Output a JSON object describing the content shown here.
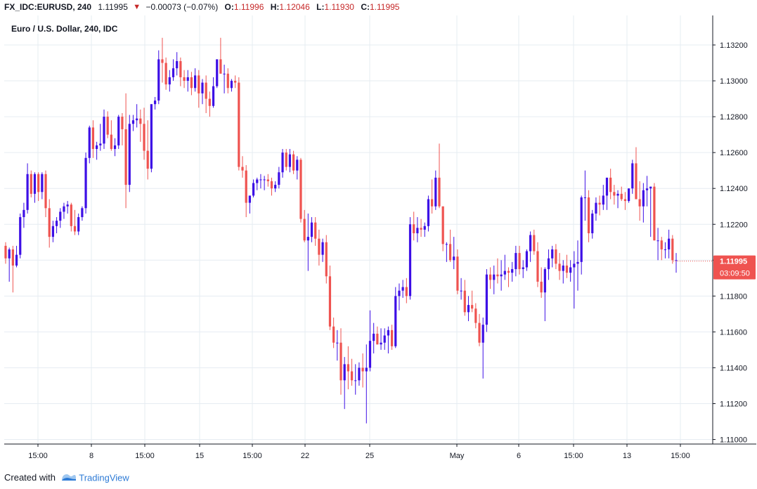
{
  "header": {
    "symbol": "FX_IDC:EURUSD, 240",
    "last": "1.11995",
    "arrow": "▼",
    "change": "−0.00073 (−0.07%)",
    "o_label": "O:",
    "o_value": "1.11996",
    "h_label": "H:",
    "h_value": "1.12046",
    "l_label": "L:",
    "l_value": "1.11930",
    "c_label": "C:",
    "c_value": "1.11995"
  },
  "footer": {
    "created_with": "Created with",
    "brand": "TradingView"
  },
  "colors": {
    "up": "#3d0fe6",
    "down": "#ef5350",
    "grid": "#e6ecf2",
    "axis": "#131722",
    "price_tag": "#ef5350"
  },
  "chart_data": {
    "type": "candlestick",
    "title": "Euro / U.S. Dollar, 240, IDC",
    "ylim": [
      1.1099,
      1.1324
    ],
    "y_ticks": [
      "1.13200",
      "1.13000",
      "1.12800",
      "1.12600",
      "1.12400",
      "1.12200",
      "1.12000",
      "1.11800",
      "1.11600",
      "1.11400",
      "1.11200",
      "1.11000"
    ],
    "x_ticks": [
      "15:00",
      "8",
      "15:00",
      "15",
      "15:00",
      "22",
      "25",
      "May",
      "6",
      "15:00",
      "13",
      "15:00"
    ],
    "grid": true,
    "last_price_label": "1.11995",
    "countdown_label": "03:09:50",
    "candles_ohlc": [
      [
        1.1208,
        1.121,
        1.1198,
        1.1201
      ],
      [
        1.1201,
        1.1207,
        1.1188,
        1.1206
      ],
      [
        1.1206,
        1.1208,
        1.1182,
        1.1197
      ],
      [
        1.1197,
        1.1208,
        1.1196,
        1.1203
      ],
      [
        1.1203,
        1.1226,
        1.1201,
        1.1224
      ],
      [
        1.1224,
        1.1232,
        1.1218,
        1.1228
      ],
      [
        1.1228,
        1.1254,
        1.1226,
        1.1248
      ],
      [
        1.1248,
        1.125,
        1.1235,
        1.1237
      ],
      [
        1.1237,
        1.1249,
        1.1232,
        1.1248
      ],
      [
        1.1248,
        1.1249,
        1.1233,
        1.1238
      ],
      [
        1.1238,
        1.1249,
        1.1234,
        1.1248
      ],
      [
        1.1248,
        1.125,
        1.1224,
        1.1229
      ],
      [
        1.1229,
        1.1234,
        1.1207,
        1.1213
      ],
      [
        1.1213,
        1.1222,
        1.121,
        1.1219
      ],
      [
        1.1219,
        1.1224,
        1.1215,
        1.1222
      ],
      [
        1.1222,
        1.1229,
        1.1218,
        1.1227
      ],
      [
        1.1227,
        1.1232,
        1.1223,
        1.123
      ],
      [
        1.123,
        1.1233,
        1.1226,
        1.1231
      ],
      [
        1.1231,
        1.1232,
        1.1216,
        1.1219
      ],
      [
        1.1219,
        1.1228,
        1.1214,
        1.1216
      ],
      [
        1.1216,
        1.1226,
        1.1214,
        1.1224
      ],
      [
        1.1224,
        1.123,
        1.1222,
        1.1229
      ],
      [
        1.1229,
        1.126,
        1.1226,
        1.1257
      ],
      [
        1.1257,
        1.1275,
        1.1254,
        1.1274
      ],
      [
        1.1274,
        1.1278,
        1.1257,
        1.1262
      ],
      [
        1.1262,
        1.1266,
        1.1256,
        1.1264
      ],
      [
        1.1264,
        1.1276,
        1.1261,
        1.1265
      ],
      [
        1.1265,
        1.1284,
        1.1262,
        1.128
      ],
      [
        1.128,
        1.1283,
        1.1268,
        1.127
      ],
      [
        1.127,
        1.1278,
        1.1261,
        1.1262
      ],
      [
        1.1262,
        1.1268,
        1.1258,
        1.1264
      ],
      [
        1.1264,
        1.1281,
        1.1262,
        1.128
      ],
      [
        1.128,
        1.1282,
        1.1264,
        1.1273
      ],
      [
        1.1273,
        1.1293,
        1.1229,
        1.1242
      ],
      [
        1.1242,
        1.1281,
        1.1238,
        1.1276
      ],
      [
        1.1276,
        1.1281,
        1.1272,
        1.1278
      ],
      [
        1.1278,
        1.1287,
        1.1274,
        1.1279
      ],
      [
        1.1279,
        1.1284,
        1.1266,
        1.1276
      ],
      [
        1.1276,
        1.1285,
        1.1256,
        1.1261
      ],
      [
        1.1261,
        1.1278,
        1.1245,
        1.1251
      ],
      [
        1.1251,
        1.1285,
        1.1249,
        1.1287
      ],
      [
        1.1287,
        1.1291,
        1.1284,
        1.1289
      ],
      [
        1.1289,
        1.1317,
        1.1287,
        1.1312
      ],
      [
        1.1312,
        1.1324,
        1.1299,
        1.131
      ],
      [
        1.131,
        1.1313,
        1.1295,
        1.1298
      ],
      [
        1.1298,
        1.1306,
        1.1294,
        1.1302
      ],
      [
        1.1302,
        1.1312,
        1.13,
        1.1307
      ],
      [
        1.1307,
        1.1316,
        1.1303,
        1.1311
      ],
      [
        1.1311,
        1.1313,
        1.1297,
        1.1302
      ],
      [
        1.1302,
        1.1306,
        1.1296,
        1.13
      ],
      [
        1.13,
        1.1306,
        1.1294,
        1.1302
      ],
      [
        1.1302,
        1.1305,
        1.1292,
        1.1296
      ],
      [
        1.1296,
        1.1307,
        1.1294,
        1.1303
      ],
      [
        1.1303,
        1.1306,
        1.1285,
        1.1293
      ],
      [
        1.1293,
        1.1301,
        1.1287,
        1.1299
      ],
      [
        1.1299,
        1.1303,
        1.1282,
        1.129
      ],
      [
        1.129,
        1.1294,
        1.128,
        1.1286
      ],
      [
        1.1286,
        1.1302,
        1.1285,
        1.1297
      ],
      [
        1.1297,
        1.1308,
        1.1296,
        1.1312
      ],
      [
        1.1312,
        1.1324,
        1.1304,
        1.1304
      ],
      [
        1.1304,
        1.1309,
        1.1293,
        1.1304
      ],
      [
        1.1304,
        1.1307,
        1.1293,
        1.1296
      ],
      [
        1.1296,
        1.1301,
        1.1294,
        1.13
      ],
      [
        1.13,
        1.1303,
        1.1296,
        1.1299
      ],
      [
        1.1299,
        1.1302,
        1.125,
        1.1252
      ],
      [
        1.1252,
        1.1258,
        1.1246,
        1.125
      ],
      [
        1.125,
        1.1253,
        1.1224,
        1.1232
      ],
      [
        1.1232,
        1.1235,
        1.1226,
        1.1236
      ],
      [
        1.1236,
        1.1245,
        1.1235,
        1.1243
      ],
      [
        1.1243,
        1.1246,
        1.1239,
        1.1245
      ],
      [
        1.1245,
        1.1248,
        1.124,
        1.1245
      ],
      [
        1.1245,
        1.1247,
        1.1239,
        1.1245
      ],
      [
        1.1245,
        1.1248,
        1.1241,
        1.1244
      ],
      [
        1.1244,
        1.1246,
        1.1236,
        1.124
      ],
      [
        1.124,
        1.1244,
        1.1238,
        1.1242
      ],
      [
        1.1242,
        1.1252,
        1.124,
        1.1249
      ],
      [
        1.1249,
        1.1262,
        1.1246,
        1.126
      ],
      [
        1.126,
        1.1262,
        1.125,
        1.1252
      ],
      [
        1.1252,
        1.1262,
        1.1249,
        1.1259
      ],
      [
        1.1259,
        1.1261,
        1.1248,
        1.125
      ],
      [
        1.125,
        1.1258,
        1.1245,
        1.1256
      ],
      [
        1.1256,
        1.1257,
        1.1221,
        1.1223
      ],
      [
        1.1223,
        1.1228,
        1.121,
        1.1211
      ],
      [
        1.1211,
        1.1226,
        1.1194,
        1.1213
      ],
      [
        1.1213,
        1.1224,
        1.121,
        1.1221
      ],
      [
        1.1221,
        1.1224,
        1.1208,
        1.1212
      ],
      [
        1.1212,
        1.1217,
        1.1197,
        1.1203
      ],
      [
        1.1203,
        1.1212,
        1.1199,
        1.121
      ],
      [
        1.121,
        1.1214,
        1.1187,
        1.1191
      ],
      [
        1.1191,
        1.1197,
        1.1161,
        1.1163
      ],
      [
        1.1163,
        1.1168,
        1.1151,
        1.1154
      ],
      [
        1.1154,
        1.1161,
        1.1144,
        1.1154
      ],
      [
        1.1154,
        1.1162,
        1.1125,
        1.1133
      ],
      [
        1.1133,
        1.1146,
        1.1117,
        1.1142
      ],
      [
        1.1142,
        1.1152,
        1.1128,
        1.1138
      ],
      [
        1.1138,
        1.1145,
        1.113,
        1.1133
      ],
      [
        1.1133,
        1.1142,
        1.1125,
        1.1133
      ],
      [
        1.1133,
        1.1143,
        1.113,
        1.114
      ],
      [
        1.114,
        1.1148,
        1.1129,
        1.1138
      ],
      [
        1.1138,
        1.1153,
        1.1109,
        1.114
      ],
      [
        1.114,
        1.1172,
        1.1138,
        1.1155
      ],
      [
        1.1155,
        1.1165,
        1.1148,
        1.1159
      ],
      [
        1.1159,
        1.1163,
        1.1153,
        1.1153
      ],
      [
        1.1153,
        1.1162,
        1.115,
        1.1154
      ],
      [
        1.1154,
        1.1162,
        1.115,
        1.1158
      ],
      [
        1.1158,
        1.1163,
        1.1148,
        1.1161
      ],
      [
        1.1161,
        1.1164,
        1.115,
        1.1152
      ],
      [
        1.1152,
        1.1185,
        1.1151,
        1.118
      ],
      [
        1.118,
        1.1187,
        1.1172,
        1.1183
      ],
      [
        1.1183,
        1.1189,
        1.1179,
        1.1185
      ],
      [
        1.1185,
        1.119,
        1.1176,
        1.118
      ],
      [
        1.118,
        1.1224,
        1.1178,
        1.122
      ],
      [
        1.122,
        1.1227,
        1.1211,
        1.1215
      ],
      [
        1.1215,
        1.1224,
        1.121,
        1.1218
      ],
      [
        1.1218,
        1.1223,
        1.1213,
        1.1217
      ],
      [
        1.1217,
        1.1221,
        1.1213,
        1.1219
      ],
      [
        1.1219,
        1.1236,
        1.1216,
        1.1234
      ],
      [
        1.1234,
        1.1245,
        1.1226,
        1.123
      ],
      [
        1.123,
        1.125,
        1.1228,
        1.1246
      ],
      [
        1.1246,
        1.1265,
        1.1229,
        1.123
      ],
      [
        1.123,
        1.1228,
        1.1205,
        1.1209
      ],
      [
        1.1209,
        1.121,
        1.1199,
        1.1209
      ],
      [
        1.1209,
        1.1217,
        1.1199,
        1.12
      ],
      [
        1.12,
        1.1213,
        1.1195,
        1.1202
      ],
      [
        1.1202,
        1.1206,
        1.1181,
        1.1183
      ],
      [
        1.1183,
        1.119,
        1.1178,
        1.1183
      ],
      [
        1.1183,
        1.1189,
        1.1169,
        1.1171
      ],
      [
        1.1171,
        1.118,
        1.1166,
        1.1175
      ],
      [
        1.1175,
        1.1183,
        1.1171,
        1.1173
      ],
      [
        1.1173,
        1.1176,
        1.1162,
        1.1165
      ],
      [
        1.1165,
        1.117,
        1.1152,
        1.1154
      ],
      [
        1.1154,
        1.1168,
        1.1134,
        1.1164
      ],
      [
        1.1164,
        1.1195,
        1.116,
        1.1192
      ],
      [
        1.1192,
        1.1196,
        1.1184,
        1.1189
      ],
      [
        1.1189,
        1.1197,
        1.1181,
        1.1192
      ],
      [
        1.1192,
        1.1201,
        1.1187,
        1.1191
      ],
      [
        1.1191,
        1.12,
        1.1183,
        1.1192
      ],
      [
        1.1192,
        1.1203,
        1.1189,
        1.1194
      ],
      [
        1.1194,
        1.1196,
        1.1185,
        1.1193
      ],
      [
        1.1193,
        1.1199,
        1.1188,
        1.1195
      ],
      [
        1.1195,
        1.1208,
        1.1191,
        1.1204
      ],
      [
        1.1204,
        1.1208,
        1.1192,
        1.1195
      ],
      [
        1.1195,
        1.12,
        1.119,
        1.1196
      ],
      [
        1.1196,
        1.1206,
        1.1194,
        1.1205
      ],
      [
        1.1205,
        1.1216,
        1.1199,
        1.1214
      ],
      [
        1.1214,
        1.1217,
        1.1203,
        1.1205
      ],
      [
        1.1205,
        1.121,
        1.1185,
        1.1188
      ],
      [
        1.1188,
        1.1196,
        1.1179,
        1.1182
      ],
      [
        1.1182,
        1.1196,
        1.1166,
        1.1195
      ],
      [
        1.1195,
        1.1206,
        1.1189,
        1.1201
      ],
      [
        1.1201,
        1.1208,
        1.1196,
        1.1206
      ],
      [
        1.1206,
        1.1209,
        1.1195,
        1.1198
      ],
      [
        1.1198,
        1.1204,
        1.1189,
        1.1194
      ],
      [
        1.1194,
        1.12,
        1.1187,
        1.1197
      ],
      [
        1.1197,
        1.1203,
        1.119,
        1.1193
      ],
      [
        1.1193,
        1.12,
        1.1188,
        1.1196
      ],
      [
        1.1196,
        1.1205,
        1.1173,
        1.1198
      ],
      [
        1.1198,
        1.1211,
        1.1183,
        1.1199
      ],
      [
        1.1199,
        1.1236,
        1.1192,
        1.1235
      ],
      [
        1.1235,
        1.125,
        1.1222,
        1.1235
      ],
      [
        1.1235,
        1.1239,
        1.121,
        1.1215
      ],
      [
        1.1215,
        1.1228,
        1.1212,
        1.1226
      ],
      [
        1.1226,
        1.1235,
        1.1222,
        1.1232
      ],
      [
        1.1232,
        1.1236,
        1.1225,
        1.1231
      ],
      [
        1.1231,
        1.1242,
        1.1228,
        1.1236
      ],
      [
        1.1236,
        1.1246,
        1.1228,
        1.1246
      ],
      [
        1.1246,
        1.1251,
        1.1234,
        1.1238
      ],
      [
        1.1238,
        1.1242,
        1.1231,
        1.1236
      ],
      [
        1.1236,
        1.1239,
        1.1229,
        1.1237
      ],
      [
        1.1237,
        1.1241,
        1.1233,
        1.1234
      ],
      [
        1.1234,
        1.1238,
        1.1228,
        1.1233
      ],
      [
        1.1233,
        1.124,
        1.1232,
        1.124
      ],
      [
        1.124,
        1.1256,
        1.1237,
        1.1254
      ],
      [
        1.1254,
        1.1263,
        1.1236,
        1.1234
      ],
      [
        1.1234,
        1.1244,
        1.1222,
        1.123
      ],
      [
        1.123,
        1.1243,
        1.1221,
        1.1239
      ],
      [
        1.1239,
        1.1247,
        1.123,
        1.124
      ],
      [
        1.124,
        1.124,
        1.1213,
        1.1241
      ],
      [
        1.1241,
        1.1243,
        1.1212,
        1.1211
      ],
      [
        1.1211,
        1.1218,
        1.12,
        1.1211
      ],
      [
        1.1211,
        1.1213,
        1.12,
        1.1206
      ],
      [
        1.1206,
        1.121,
        1.1201,
        1.1206
      ],
      [
        1.1206,
        1.1217,
        1.1201,
        1.1212
      ],
      [
        1.1212,
        1.1214,
        1.1198,
        1.12
      ],
      [
        1.12,
        1.1204,
        1.1193,
        1.12
      ]
    ]
  }
}
